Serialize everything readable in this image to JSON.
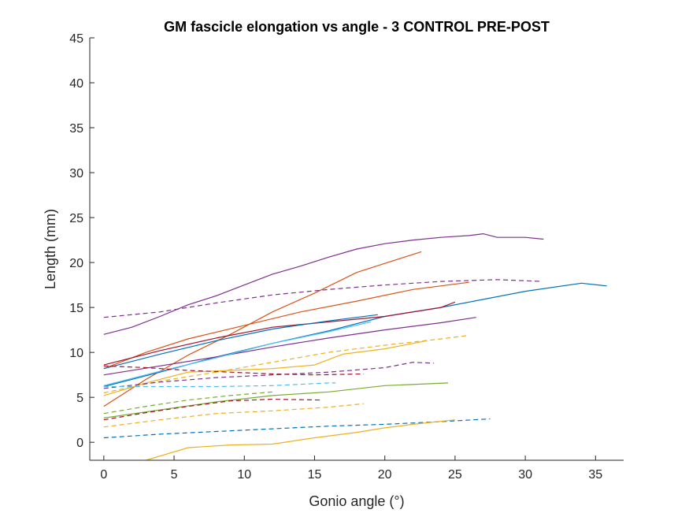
{
  "chart_data": {
    "type": "line",
    "title": "GM fascicle elongation vs angle - 3 CONTROL PRE-POST",
    "xlabel": "Gonio angle (°)",
    "ylabel": "Length (mm)",
    "xlim": [
      -1,
      37
    ],
    "ylim": [
      -2,
      45
    ],
    "xticks": [
      0,
      5,
      10,
      15,
      20,
      25,
      30,
      35
    ],
    "yticks": [
      0,
      5,
      10,
      15,
      20,
      25,
      30,
      35,
      40,
      45
    ],
    "grid": false,
    "series": [
      {
        "color": "#7E2F8E",
        "style": "solid",
        "x": [
          0,
          2,
          4,
          6,
          8,
          10,
          12,
          14,
          16,
          18,
          20,
          22,
          24,
          26,
          27,
          28,
          30,
          31.3
        ],
        "y": [
          12.0,
          12.8,
          14.0,
          15.3,
          16.3,
          17.5,
          18.7,
          19.6,
          20.6,
          21.5,
          22.1,
          22.5,
          22.8,
          23.0,
          23.2,
          22.8,
          22.8,
          22.6
        ]
      },
      {
        "color": "#D95319",
        "style": "solid",
        "x": [
          0,
          3,
          6,
          9,
          12,
          15,
          18,
          20,
          22.6
        ],
        "y": [
          4.0,
          7.0,
          9.7,
          12.0,
          14.5,
          16.6,
          18.9,
          19.9,
          21.2
        ]
      },
      {
        "color": "#7E2F8E",
        "style": "dashed",
        "x": [
          0,
          4,
          8,
          12,
          16,
          20,
          24,
          28,
          31.2
        ],
        "y": [
          13.9,
          14.5,
          15.5,
          16.4,
          17.0,
          17.5,
          17.9,
          18.1,
          17.9
        ]
      },
      {
        "color": "#0072BD",
        "style": "solid",
        "x": [
          0,
          4,
          8,
          12,
          16,
          20,
          24,
          27,
          30,
          34,
          35.8
        ],
        "y": [
          6.2,
          7.8,
          9.5,
          11.0,
          12.4,
          14.0,
          15.0,
          15.9,
          16.8,
          17.7,
          17.4
        ]
      },
      {
        "color": "#D95319",
        "style": "solid",
        "x": [
          0,
          3,
          6,
          10,
          14,
          18,
          22,
          26
        ],
        "y": [
          8.2,
          10.0,
          11.5,
          13.0,
          14.5,
          15.7,
          17.0,
          17.8
        ]
      },
      {
        "color": "#A2142F",
        "style": "solid",
        "x": [
          0,
          4,
          8,
          12,
          16,
          20,
          24,
          25
        ],
        "y": [
          8.6,
          10.2,
          11.6,
          12.8,
          13.4,
          14.0,
          15.0,
          15.6
        ]
      },
      {
        "color": "#7E2F8E",
        "style": "solid",
        "x": [
          0,
          4,
          8,
          12,
          16,
          20,
          24,
          26.5
        ],
        "y": [
          7.5,
          8.5,
          9.5,
          10.6,
          11.6,
          12.5,
          13.3,
          13.9
        ]
      },
      {
        "color": "#4DBEEE",
        "style": "solid",
        "x": [
          0,
          4,
          8,
          12,
          16,
          19
        ],
        "y": [
          6.3,
          7.9,
          9.4,
          11.0,
          12.3,
          13.4
        ]
      },
      {
        "color": "#0072BD",
        "style": "solid",
        "x": [
          0,
          4,
          8,
          12,
          16,
          19.5
        ],
        "y": [
          8.2,
          9.8,
          11.3,
          12.6,
          13.5,
          14.2
        ]
      },
      {
        "color": "#EDB120",
        "style": "dashed",
        "x": [
          0,
          4,
          8,
          12,
          16,
          20,
          24,
          26
        ],
        "y": [
          5.5,
          6.8,
          7.8,
          8.9,
          10.0,
          10.8,
          11.5,
          11.9
        ]
      },
      {
        "color": "#EDB120",
        "style": "solid",
        "x": [
          0,
          3,
          6,
          9,
          12,
          15,
          17,
          20,
          23
        ],
        "y": [
          5.2,
          6.6,
          7.8,
          8.0,
          8.2,
          8.6,
          9.8,
          10.4,
          11.3
        ]
      },
      {
        "color": "#7E2F8E",
        "style": "dashed",
        "x": [
          0,
          4,
          8,
          12,
          16,
          20,
          22,
          23.5
        ],
        "y": [
          6.0,
          6.7,
          7.2,
          7.5,
          7.8,
          8.3,
          8.9,
          8.8
        ]
      },
      {
        "color": "#77AC30",
        "style": "solid",
        "x": [
          0,
          4,
          8,
          12,
          16,
          20,
          24.5
        ],
        "y": [
          2.7,
          3.6,
          4.5,
          5.2,
          5.6,
          6.3,
          6.6
        ]
      },
      {
        "color": "#4DBEEE",
        "style": "dashed",
        "x": [
          0,
          4,
          8,
          12,
          16,
          16.5
        ],
        "y": [
          6.2,
          6.2,
          6.2,
          6.3,
          6.6,
          6.6
        ]
      },
      {
        "color": "#A2142F",
        "style": "dashed",
        "x": [
          0,
          3,
          6,
          9,
          12,
          15,
          18.5
        ],
        "y": [
          8.5,
          8.3,
          8.0,
          7.8,
          7.6,
          7.5,
          7.6
        ]
      },
      {
        "color": "#77AC30",
        "style": "dashed",
        "x": [
          0,
          3,
          6,
          9,
          12
        ],
        "y": [
          3.2,
          4.0,
          4.7,
          5.2,
          5.6
        ]
      },
      {
        "color": "#A2142F",
        "style": "dashed",
        "x": [
          0,
          3,
          6,
          9,
          12,
          15.5
        ],
        "y": [
          2.5,
          3.3,
          4.0,
          4.6,
          4.8,
          4.7
        ]
      },
      {
        "color": "#EDB120",
        "style": "dashed",
        "x": [
          0,
          4,
          8,
          12,
          16,
          18.5
        ],
        "y": [
          1.7,
          2.5,
          3.2,
          3.5,
          3.9,
          4.3
        ]
      },
      {
        "color": "#0072BD",
        "style": "dashed",
        "x": [
          0,
          4,
          8,
          12,
          16,
          20,
          24,
          27.5
        ],
        "y": [
          0.5,
          0.9,
          1.2,
          1.5,
          1.8,
          2.0,
          2.3,
          2.6
        ]
      },
      {
        "color": "#EDB120",
        "style": "solid",
        "x": [
          3,
          6,
          9,
          12,
          15,
          18,
          20,
          22,
          25
        ],
        "y": [
          -2.0,
          -0.6,
          -0.3,
          -0.2,
          0.5,
          1.1,
          1.6,
          2.0,
          2.5
        ]
      }
    ]
  }
}
